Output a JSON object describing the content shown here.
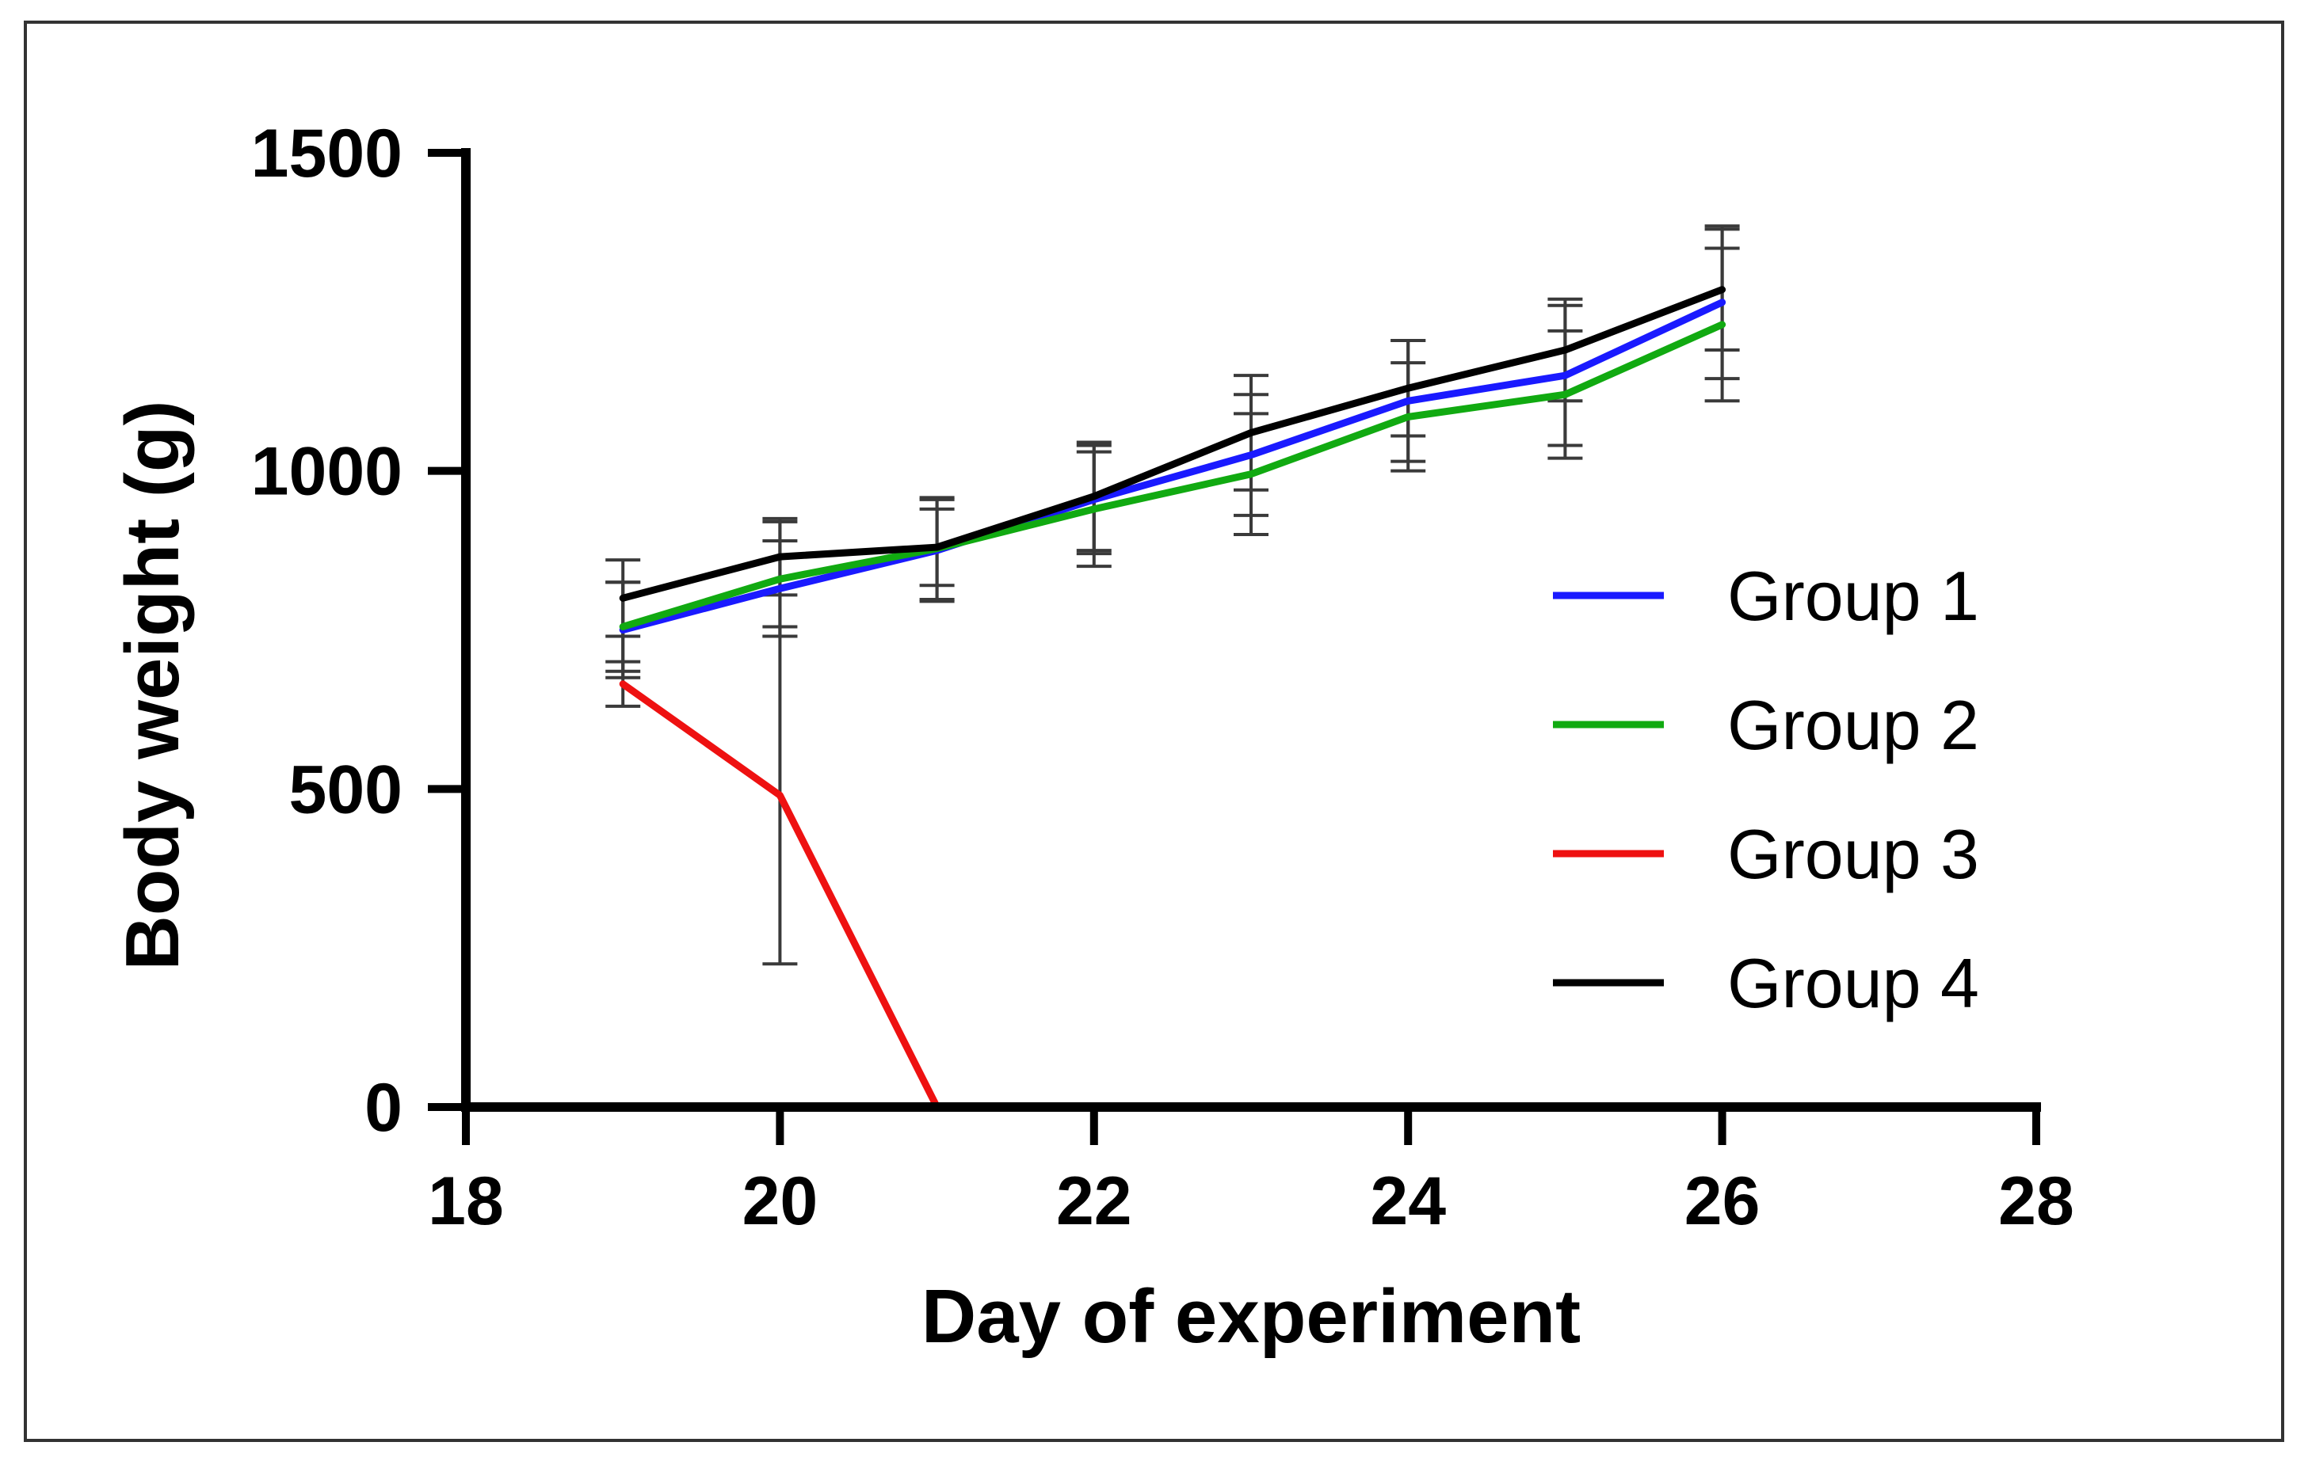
{
  "chart_data": {
    "type": "line",
    "xlabel": "Day of experiment",
    "ylabel": "Body weight (g)",
    "xlim": [
      18,
      28
    ],
    "ylim": [
      0,
      1500
    ],
    "xticks": [
      18,
      20,
      22,
      24,
      26,
      28
    ],
    "yticks": [
      0,
      500,
      1000,
      1500
    ],
    "xtick_labels": [
      "18",
      "20",
      "22",
      "24",
      "26",
      "28"
    ],
    "ytick_labels": [
      "0",
      "500",
      "1000",
      "1500"
    ],
    "grid": false,
    "legend_position": "right",
    "series": [
      {
        "name": "Group 1",
        "color": "#1a1aff",
        "x": [
          19,
          20,
          21,
          22,
          23,
          24,
          25,
          26
        ],
        "y": [
          750,
          815,
          875,
          955,
          1025,
          1110,
          1150,
          1265
        ],
        "err": [
          75,
          75,
          80,
          85,
          95,
          95,
          110,
          120
        ]
      },
      {
        "name": "Group 2",
        "color": "#11aa11",
        "x": [
          19,
          20,
          21,
          22,
          23,
          24,
          25,
          26
        ],
        "y": [
          755,
          830,
          878,
          940,
          995,
          1085,
          1120,
          1230
        ],
        "err": [
          70,
          90,
          80,
          90,
          95,
          85,
          100,
          120
        ]
      },
      {
        "name": "Group 3",
        "color": "#ee1111",
        "x": [
          19,
          20,
          21
        ],
        "y": [
          665,
          490,
          0
        ],
        "err": [
          35,
          265,
          0
        ]
      },
      {
        "name": "Group 4",
        "color": "#000000",
        "x": [
          19,
          20,
          21,
          22,
          23,
          24,
          25,
          26
        ],
        "y": [
          800,
          865,
          880,
          960,
          1060,
          1130,
          1190,
          1285
        ],
        "err": [
          60,
          60,
          60,
          85,
          90,
          75,
          80,
          95
        ]
      }
    ]
  }
}
